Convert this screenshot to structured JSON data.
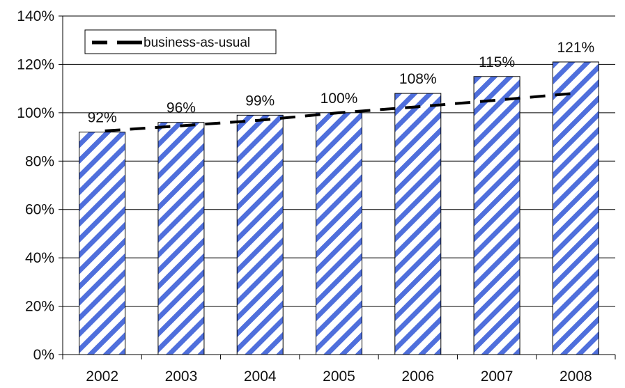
{
  "chart_data": {
    "type": "bar",
    "categories": [
      "2002",
      "2003",
      "2004",
      "2005",
      "2006",
      "2007",
      "2008"
    ],
    "series": [
      {
        "type": "bar",
        "values": [
          92,
          96,
          99,
          100,
          108,
          115,
          121
        ],
        "data_labels": [
          "92%",
          "96%",
          "99%",
          "100%",
          "108%",
          "115%",
          "121%"
        ],
        "pattern": "diagonal-stripes",
        "color": "#4f6fdc"
      },
      {
        "name": "business-as-usual",
        "type": "line",
        "style": "dashed",
        "color": "#000000",
        "values": [
          92.5,
          94.6,
          96.9,
          100.0,
          102.5,
          105.2,
          108.0
        ]
      }
    ],
    "ylim": [
      0,
      140
    ],
    "yticks": [
      0,
      20,
      40,
      60,
      80,
      100,
      120,
      140
    ],
    "ytick_labels": [
      "0%",
      "20%",
      "40%",
      "60%",
      "80%",
      "100%",
      "120%",
      "140%"
    ],
    "grid": "horizontal",
    "legend": {
      "position": "top-left",
      "entries": [
        "business-as-usual"
      ]
    },
    "title": "",
    "xlabel": "",
    "ylabel": ""
  }
}
